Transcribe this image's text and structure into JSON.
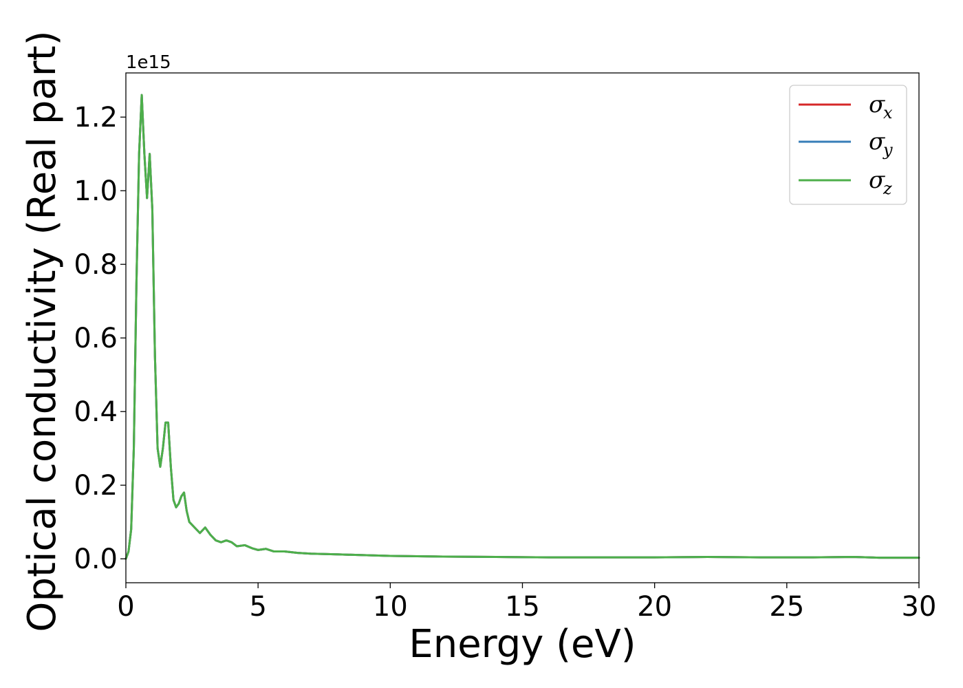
{
  "chart_data": {
    "type": "line",
    "xlabel": "Energy (eV)",
    "ylabel": "Optical conductivity (Real part)",
    "y_offset_label": "1e15",
    "y_scale": 1000000000000000.0,
    "xlim": [
      0,
      30
    ],
    "ylim": [
      -0.065,
      1.32
    ],
    "x_ticks": [
      0,
      5,
      10,
      15,
      20,
      25,
      30
    ],
    "x_tick_labels": [
      "0",
      "5",
      "10",
      "15",
      "20",
      "25",
      "30"
    ],
    "y_ticks": [
      0.0,
      0.2,
      0.4,
      0.6,
      0.8,
      1.0,
      1.2
    ],
    "y_tick_labels": [
      "0.0",
      "0.2",
      "0.4",
      "0.6",
      "0.8",
      "1.0",
      "1.2"
    ],
    "grid": false,
    "legend_position": "top-right",
    "x": [
      0,
      0.1,
      0.2,
      0.3,
      0.4,
      0.5,
      0.6,
      0.7,
      0.8,
      0.9,
      1.0,
      1.1,
      1.2,
      1.3,
      1.4,
      1.5,
      1.6,
      1.7,
      1.8,
      1.9,
      2.0,
      2.1,
      2.2,
      2.3,
      2.4,
      2.6,
      2.8,
      3.0,
      3.2,
      3.4,
      3.6,
      3.8,
      4.0,
      4.2,
      4.5,
      4.8,
      5.0,
      5.3,
      5.6,
      6.0,
      6.5,
      7.0,
      8.0,
      9.0,
      10.0,
      12.0,
      14.0,
      16.0,
      18.0,
      20.0,
      22.0,
      24.0,
      26.0,
      27.5,
      28.5,
      30.0
    ],
    "series": [
      {
        "name_base": "σ",
        "name_sub": "x",
        "color": "#d62728",
        "y": [
          0.0,
          0.02,
          0.08,
          0.3,
          0.75,
          1.1,
          1.26,
          1.1,
          0.98,
          1.1,
          0.95,
          0.55,
          0.3,
          0.25,
          0.3,
          0.37,
          0.37,
          0.25,
          0.16,
          0.14,
          0.15,
          0.17,
          0.18,
          0.13,
          0.1,
          0.085,
          0.07,
          0.085,
          0.065,
          0.05,
          0.045,
          0.05,
          0.045,
          0.034,
          0.037,
          0.028,
          0.024,
          0.027,
          0.02,
          0.02,
          0.016,
          0.014,
          0.012,
          0.01,
          0.008,
          0.006,
          0.005,
          0.004,
          0.004,
          0.004,
          0.005,
          0.004,
          0.004,
          0.005,
          0.003,
          0.003
        ]
      },
      {
        "name_base": "σ",
        "name_sub": "y",
        "color": "#377eb8",
        "y": [
          0.0,
          0.02,
          0.08,
          0.3,
          0.75,
          1.1,
          1.26,
          1.1,
          0.98,
          1.1,
          0.95,
          0.55,
          0.3,
          0.25,
          0.3,
          0.37,
          0.37,
          0.25,
          0.16,
          0.14,
          0.15,
          0.17,
          0.18,
          0.13,
          0.1,
          0.085,
          0.07,
          0.085,
          0.065,
          0.05,
          0.045,
          0.05,
          0.045,
          0.034,
          0.037,
          0.028,
          0.024,
          0.027,
          0.02,
          0.02,
          0.016,
          0.014,
          0.012,
          0.01,
          0.008,
          0.006,
          0.005,
          0.004,
          0.004,
          0.004,
          0.005,
          0.004,
          0.004,
          0.005,
          0.003,
          0.003
        ]
      },
      {
        "name_base": "σ",
        "name_sub": "z",
        "color": "#4daf4a",
        "y": [
          0.0,
          0.02,
          0.08,
          0.3,
          0.75,
          1.1,
          1.26,
          1.1,
          0.98,
          1.1,
          0.95,
          0.55,
          0.3,
          0.25,
          0.3,
          0.37,
          0.37,
          0.25,
          0.16,
          0.14,
          0.15,
          0.17,
          0.18,
          0.13,
          0.1,
          0.085,
          0.07,
          0.085,
          0.065,
          0.05,
          0.045,
          0.05,
          0.045,
          0.034,
          0.037,
          0.028,
          0.024,
          0.027,
          0.02,
          0.02,
          0.016,
          0.014,
          0.012,
          0.01,
          0.008,
          0.006,
          0.005,
          0.004,
          0.004,
          0.004,
          0.005,
          0.004,
          0.004,
          0.005,
          0.003,
          0.003
        ]
      }
    ]
  }
}
